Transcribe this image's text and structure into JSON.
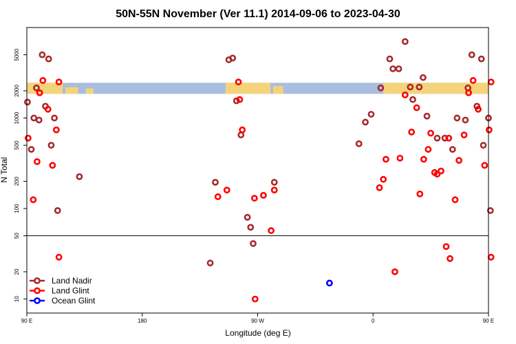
{
  "chart_data": {
    "type": "scatter",
    "title": "50N-55N November (Ver 11.1)   2014-09-06 to 2023-04-30",
    "xlabel": "Longitude (deg E)",
    "ylabel": "N Total",
    "x_scale": "linear",
    "y_scale": "log",
    "xlim": [
      90,
      450
    ],
    "ylim": [
      7,
      10000
    ],
    "x_ticks": [
      {
        "value": 90,
        "label": "90 E"
      },
      {
        "value": 180,
        "label": "180"
      },
      {
        "value": 270,
        "label": "90 W"
      },
      {
        "value": 360,
        "label": "0"
      },
      {
        "value": 450,
        "label": "90 E"
      },
      {
        "value": 540,
        "label": "180"
      }
    ],
    "y_ticks": [
      10,
      20,
      50,
      100,
      200,
      500,
      1000,
      2000,
      5000
    ],
    "reference_line_y": 50,
    "land_mask_band": {
      "y_range": [
        1850,
        2450
      ],
      "land_color": "#f5d37a",
      "ocean_color": "#a9bde0"
    },
    "legend_position": "bottom-left",
    "grid": false,
    "series": [
      {
        "name": "Land Nadir",
        "color": "#a52a2a",
        "points": [
          [
            90.5,
            1500
          ],
          [
            93.5,
            450
          ],
          [
            95.5,
            1000
          ],
          [
            97.5,
            2150
          ],
          [
            99.5,
            950
          ],
          [
            102,
            5000
          ],
          [
            104.5,
            1350
          ],
          [
            107,
            4500
          ],
          [
            109,
            500
          ],
          [
            111.5,
            1000
          ],
          [
            114,
            95
          ],
          [
            131,
            225
          ],
          [
            233,
            25
          ],
          [
            237,
            195
          ],
          [
            247.5,
            4400
          ],
          [
            250.5,
            4600
          ],
          [
            253.5,
            1550
          ],
          [
            257,
            650
          ],
          [
            262,
            80
          ],
          [
            264.5,
            62
          ],
          [
            266.5,
            41
          ],
          [
            283,
            195
          ],
          [
            349,
            520
          ],
          [
            354,
            900
          ],
          [
            358.5,
            1100
          ],
          [
            366,
            2150
          ],
          [
            373,
            4500
          ],
          [
            375.5,
            3500
          ],
          [
            380,
            3500
          ],
          [
            385,
            7000
          ],
          [
            389,
            2200
          ],
          [
            391,
            1600
          ],
          [
            396,
            2200
          ],
          [
            399,
            2800
          ],
          [
            402,
            1050
          ],
          [
            410,
            600
          ],
          [
            416,
            600
          ],
          [
            422,
            450
          ],
          [
            425.5,
            1000
          ],
          [
            432,
            950
          ],
          [
            434,
            2150
          ],
          [
            437,
            5000
          ],
          [
            441,
            1350
          ],
          [
            444.5,
            4500
          ],
          [
            446,
            500
          ],
          [
            450,
            1000
          ],
          [
            451.5,
            95
          ],
          [
            468.5,
            225
          ]
        ]
      },
      {
        "name": "Land Glint",
        "color": "#ff0000",
        "points": [
          [
            91,
            600
          ],
          [
            95,
            125
          ],
          [
            98,
            330
          ],
          [
            100,
            1900
          ],
          [
            102.5,
            2600
          ],
          [
            106.5,
            1250
          ],
          [
            110,
            300
          ],
          [
            113,
            740
          ],
          [
            115,
            29
          ],
          [
            115,
            2500
          ],
          [
            239,
            135
          ],
          [
            246,
            160
          ],
          [
            255,
            2500
          ],
          [
            256,
            1600
          ],
          [
            258,
            740
          ],
          [
            267.5,
            130
          ],
          [
            268,
            10
          ],
          [
            274.5,
            140
          ],
          [
            280.5,
            57
          ],
          [
            283,
            160
          ],
          [
            365,
            170
          ],
          [
            368,
            210
          ],
          [
            370,
            350
          ],
          [
            377,
            20
          ],
          [
            381,
            360
          ],
          [
            385,
            1800
          ],
          [
            390,
            700
          ],
          [
            394,
            1300
          ],
          [
            396.5,
            145
          ],
          [
            399.5,
            350
          ],
          [
            403,
            450
          ],
          [
            405,
            680
          ],
          [
            408,
            250
          ],
          [
            410,
            240
          ],
          [
            413,
            260
          ],
          [
            417,
            38
          ],
          [
            420,
            28
          ],
          [
            419,
            600
          ],
          [
            424,
            125
          ],
          [
            427,
            340
          ],
          [
            431,
            650
          ],
          [
            434.5,
            1900
          ],
          [
            438,
            2600
          ],
          [
            442,
            1250
          ],
          [
            447,
            300
          ],
          [
            450.5,
            740
          ],
          [
            452,
            29
          ],
          [
            452,
            2500
          ]
        ]
      },
      {
        "name": "Ocean Glint",
        "color": "#0000ff",
        "points": [
          [
            326,
            15
          ]
        ]
      }
    ]
  }
}
